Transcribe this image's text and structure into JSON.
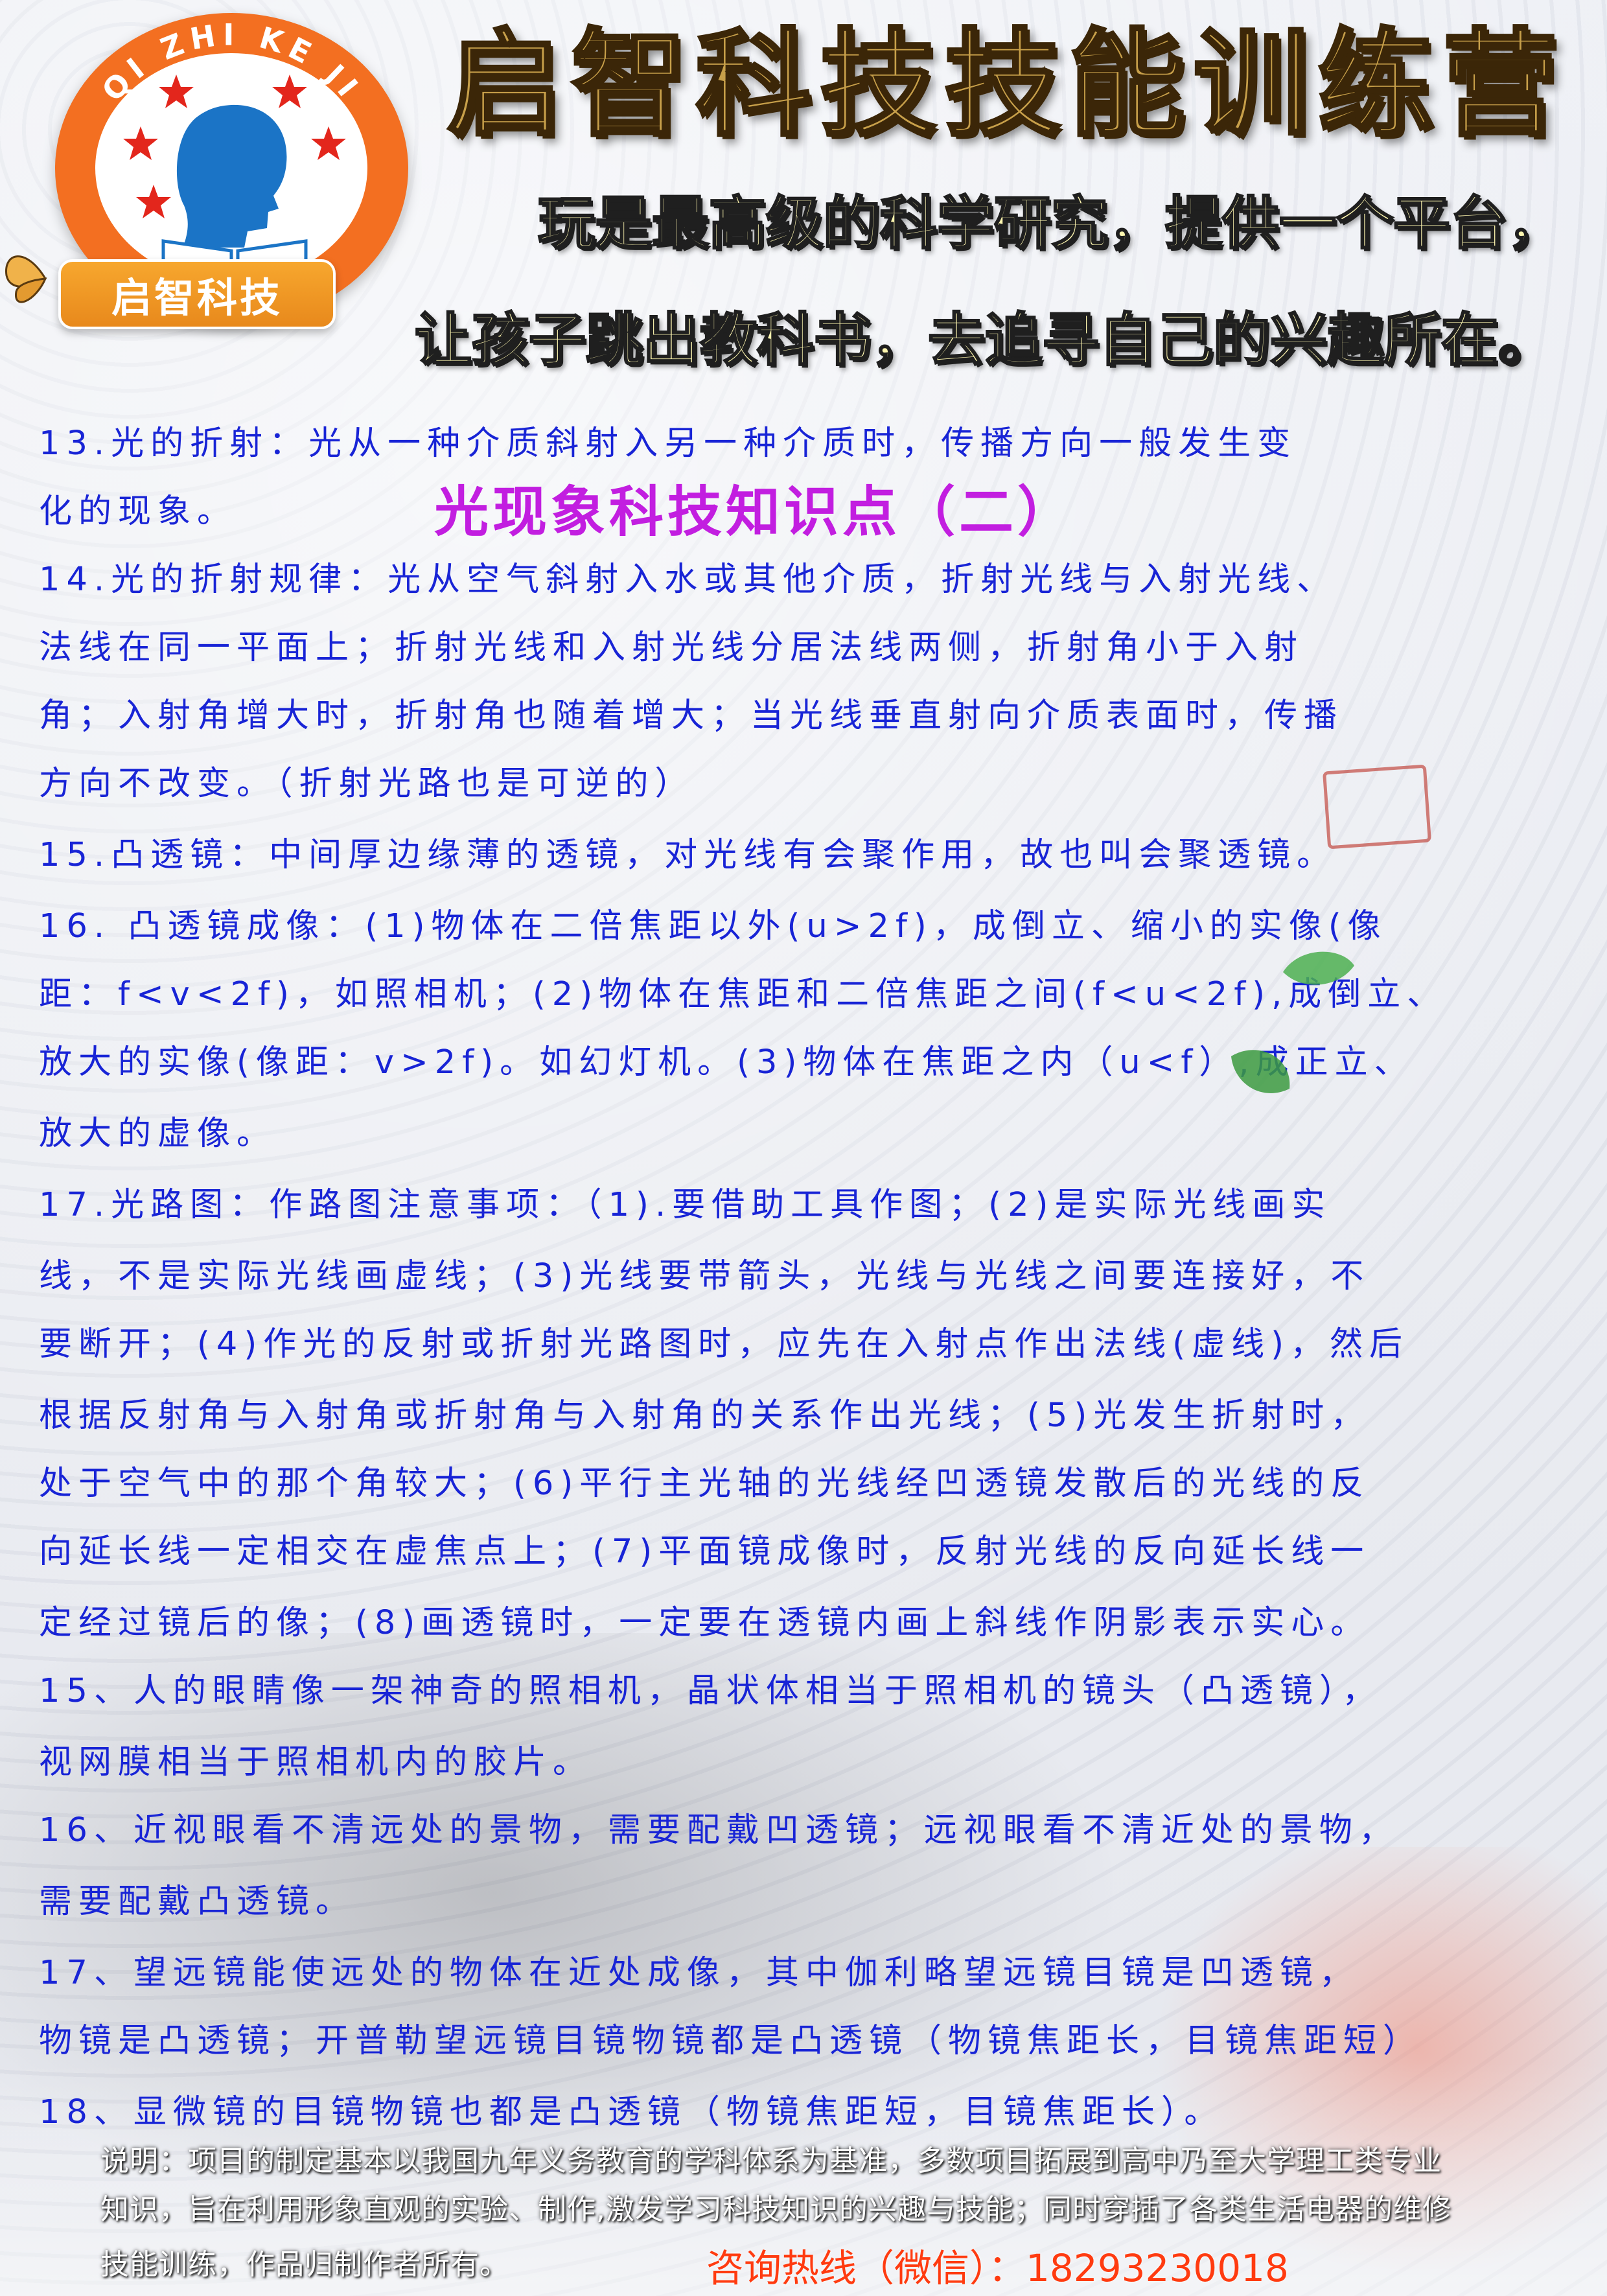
{
  "header": {
    "logo": {
      "ring_text": "QI ZHI KE JI",
      "banner": "启智科技"
    },
    "title": "启智科技技能训练营",
    "slogans": [
      "玩是最高级的科学研究，提供一个平台，",
      "让孩子跳出教科书，去追寻自己的兴趣所在。"
    ]
  },
  "document": {
    "title": "光现象科技知识点（二）",
    "lines": [
      "  13.光的折射：光从一种介质斜射入另一种介质时，传播方向一般发生变",
      "化的现象。",
      "  14.光的折射规律：光从空气斜射入水或其他介质，折射光线与入射光线、",
      "法线在同一平面上；折射光线和入射光线分居法线两侧，折射角小于入射",
      "角；入射角增大时，折射角也随着增大；当光线垂直射向介质表面时，传播",
      "方向不改变。（折射光路也是可逆的）",
      "  15.凸透镜：中间厚边缘薄的透镜，对光线有会聚作用，故也叫会聚透镜。",
      "  16. 凸透镜成像：(1)物体在二倍焦距以外(u>2f)，成倒立、缩小的实像(像",
      "距：f<v<2f)，如照相机；(2)物体在焦距和二倍焦距之间(f<u<2f),成倒立、",
      "放大的实像(像距：v>2f)。如幻灯机。(3)物体在焦距之内（u<f）,成正立、",
      "放大的虚像。",
      "   17.光路图：作路图注意事项：（1).要借助工具作图；(2)是实际光线画实",
      "线，不是实际光线画虚线；(3)光线要带箭头，光线与光线之间要连接好，不",
      "要断开；(4)作光的反射或折射光路图时，应先在入射点作出法线(虚线)，然后",
      "根据反射角与入射角或折射角与入射角的关系作出光线；(5)光发生折射时，",
      "处于空气中的那个角较大；(6)平行主光轴的光线经凹透镜发散后的光线的反",
      "向延长线一定相交在虚焦点上；(7)平面镜成像时，反射光线的反向延长线一",
      "定经过镜后的像；(8)画透镜时，一定要在透镜内画上斜线作阴影表示实心。",
      "  15、人的眼睛像一架神奇的照相机，晶状体相当于照相机的镜头（凸透镜），",
      "视网膜相当于照相机内的胶片。",
      "  16、近视眼看不清远处的景物，需要配戴凹透镜；远视眼看不清近处的景物，",
      "需要配戴凸透镜。",
      "  17、望远镜能使远处的物体在近处成像，其中伽利略望远镜目镜是凹透镜，",
      "物镜是凸透镜；开普勒望远镜目镜物镜都是凸透镜（物镜焦距长，目镜焦距短）",
      "  18、显微镜的目镜物镜也都是凸透镜（物镜焦距短，目镜焦距长）。"
    ]
  },
  "footer": {
    "notes": [
      "说明：项目的制定基本以我国九年义务教育的学科体系为基准，多数项目拓展到高中乃至大学理工类专业",
      "知识，旨在利用形象直观的实验、制作,激发学习科技知识的兴趣与技能；同时穿插了各类生活电器的维修",
      "技能训练，作品归制作者所有。"
    ],
    "hotline": "咨询热线（微信）：18293230018"
  },
  "colors": {
    "body_text": "#1824d6",
    "doc_title": "#c21ee0",
    "logo_orange": "#f36f21",
    "hotline": "#ff3b10",
    "title_gold": "#c8a04a"
  }
}
